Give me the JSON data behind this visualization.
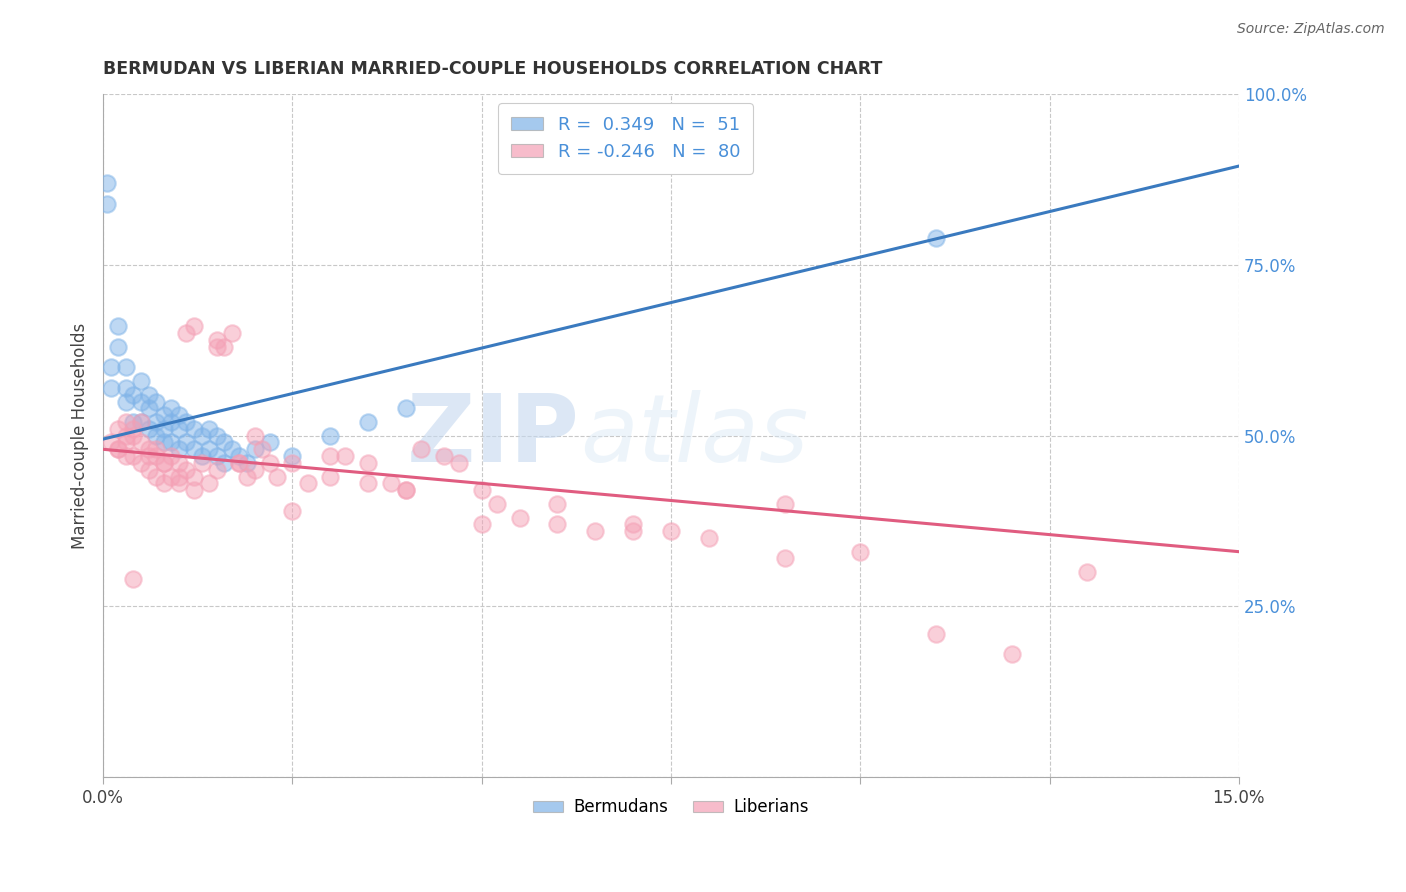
{
  "title": "BERMUDAN VS LIBERIAN MARRIED-COUPLE HOUSEHOLDS CORRELATION CHART",
  "source": "Source: ZipAtlas.com",
  "ylabel": "Married-couple Households",
  "xlim": [
    0.0,
    0.15
  ],
  "ylim": [
    0.0,
    1.0
  ],
  "xticks": [
    0.0,
    0.025,
    0.05,
    0.075,
    0.1,
    0.125,
    0.15
  ],
  "xticklabels": [
    "0.0%",
    "",
    "",
    "",
    "",
    "",
    "15.0%"
  ],
  "yticks_right": [
    0.0,
    0.25,
    0.5,
    0.75,
    1.0
  ],
  "yticklabels_right": [
    "",
    "25.0%",
    "50.0%",
    "75.0%",
    "100.0%"
  ],
  "bermudans_R": 0.349,
  "bermudans_N": 51,
  "liberians_R": -0.246,
  "liberians_N": 80,
  "blue_color": "#7fb3e8",
  "pink_color": "#f4a0b5",
  "blue_line_color": "#3a7abf",
  "pink_line_color": "#e05c80",
  "right_axis_color": "#4a90d9",
  "background_color": "#ffffff",
  "grid_color": "#c8c8c8",
  "bermudans_x": [
    0.001,
    0.001,
    0.002,
    0.002,
    0.003,
    0.003,
    0.003,
    0.004,
    0.004,
    0.005,
    0.005,
    0.005,
    0.006,
    0.006,
    0.006,
    0.007,
    0.007,
    0.007,
    0.008,
    0.008,
    0.008,
    0.009,
    0.009,
    0.009,
    0.01,
    0.01,
    0.01,
    0.011,
    0.011,
    0.012,
    0.012,
    0.013,
    0.013,
    0.014,
    0.014,
    0.015,
    0.015,
    0.016,
    0.016,
    0.017,
    0.018,
    0.019,
    0.02,
    0.022,
    0.025,
    0.03,
    0.035,
    0.04,
    0.11,
    0.0005,
    0.0005
  ],
  "bermudans_y": [
    0.57,
    0.6,
    0.63,
    0.66,
    0.6,
    0.57,
    0.55,
    0.56,
    0.52,
    0.58,
    0.55,
    0.52,
    0.56,
    0.54,
    0.51,
    0.55,
    0.52,
    0.5,
    0.53,
    0.51,
    0.49,
    0.54,
    0.52,
    0.49,
    0.53,
    0.51,
    0.48,
    0.52,
    0.49,
    0.51,
    0.48,
    0.5,
    0.47,
    0.51,
    0.48,
    0.5,
    0.47,
    0.49,
    0.46,
    0.48,
    0.47,
    0.46,
    0.48,
    0.49,
    0.47,
    0.5,
    0.52,
    0.54,
    0.79,
    0.84,
    0.87
  ],
  "liberians_x": [
    0.001,
    0.002,
    0.002,
    0.003,
    0.003,
    0.004,
    0.004,
    0.005,
    0.005,
    0.006,
    0.006,
    0.007,
    0.007,
    0.008,
    0.008,
    0.009,
    0.009,
    0.01,
    0.01,
    0.011,
    0.011,
    0.012,
    0.012,
    0.013,
    0.014,
    0.015,
    0.015,
    0.016,
    0.017,
    0.018,
    0.019,
    0.02,
    0.021,
    0.022,
    0.023,
    0.025,
    0.027,
    0.03,
    0.032,
    0.035,
    0.038,
    0.04,
    0.042,
    0.045,
    0.047,
    0.05,
    0.052,
    0.055,
    0.06,
    0.065,
    0.07,
    0.075,
    0.08,
    0.09,
    0.1,
    0.11,
    0.12,
    0.13,
    0.002,
    0.003,
    0.004,
    0.005,
    0.006,
    0.007,
    0.008,
    0.01,
    0.012,
    0.015,
    0.018,
    0.02,
    0.025,
    0.03,
    0.035,
    0.04,
    0.05,
    0.06,
    0.07,
    0.09,
    0.003,
    0.004
  ],
  "liberians_y": [
    0.49,
    0.51,
    0.48,
    0.52,
    0.49,
    0.5,
    0.47,
    0.49,
    0.46,
    0.48,
    0.45,
    0.47,
    0.44,
    0.46,
    0.43,
    0.47,
    0.44,
    0.46,
    0.43,
    0.45,
    0.65,
    0.66,
    0.44,
    0.46,
    0.43,
    0.45,
    0.64,
    0.63,
    0.65,
    0.46,
    0.44,
    0.45,
    0.48,
    0.46,
    0.44,
    0.46,
    0.43,
    0.44,
    0.47,
    0.46,
    0.43,
    0.42,
    0.48,
    0.47,
    0.46,
    0.42,
    0.4,
    0.38,
    0.37,
    0.36,
    0.37,
    0.36,
    0.35,
    0.4,
    0.33,
    0.21,
    0.18,
    0.3,
    0.48,
    0.5,
    0.51,
    0.52,
    0.47,
    0.48,
    0.46,
    0.44,
    0.42,
    0.63,
    0.46,
    0.5,
    0.39,
    0.47,
    0.43,
    0.42,
    0.37,
    0.4,
    0.36,
    0.32,
    0.47,
    0.29
  ]
}
